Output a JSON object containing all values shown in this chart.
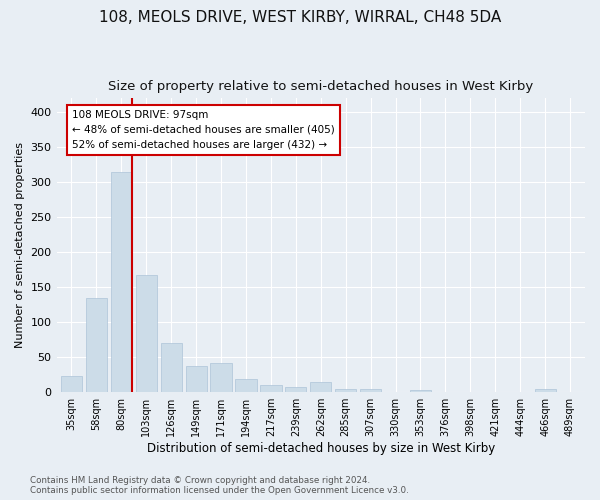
{
  "title": "108, MEOLS DRIVE, WEST KIRBY, WIRRAL, CH48 5DA",
  "subtitle": "Size of property relative to semi-detached houses in West Kirby",
  "xlabel": "Distribution of semi-detached houses by size in West Kirby",
  "ylabel": "Number of semi-detached properties",
  "footer": "Contains HM Land Registry data © Crown copyright and database right 2024.\nContains public sector information licensed under the Open Government Licence v3.0.",
  "categories": [
    "35sqm",
    "58sqm",
    "80sqm",
    "103sqm",
    "126sqm",
    "149sqm",
    "171sqm",
    "194sqm",
    "217sqm",
    "239sqm",
    "262sqm",
    "285sqm",
    "307sqm",
    "330sqm",
    "353sqm",
    "376sqm",
    "398sqm",
    "421sqm",
    "444sqm",
    "466sqm",
    "489sqm"
  ],
  "values": [
    23,
    135,
    315,
    168,
    71,
    37,
    42,
    19,
    10,
    7,
    14,
    5,
    4,
    0,
    3,
    0,
    0,
    0,
    0,
    4,
    0
  ],
  "bar_color": "#ccdce8",
  "bar_edge_color": "#adc4d8",
  "marker_line_color": "#cc0000",
  "annotation_text": "108 MEOLS DRIVE: 97sqm\n← 48% of semi-detached houses are smaller (405)\n52% of semi-detached houses are larger (432) →",
  "annotation_box_color": "#ffffff",
  "annotation_box_edge": "#cc0000",
  "ylim": [
    0,
    420
  ],
  "background_color": "#e8eef4",
  "grid_color": "#ffffff",
  "title_fontsize": 11,
  "subtitle_fontsize": 9.5
}
